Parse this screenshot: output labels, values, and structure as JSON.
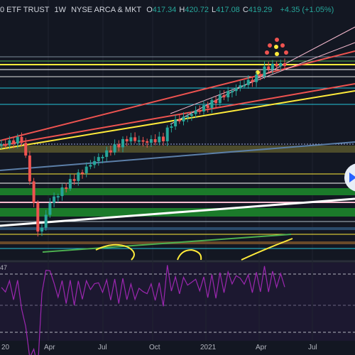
{
  "header": {
    "symbol": "0 ETF TRUST",
    "interval": "1W",
    "exchange": "NYSE ARCA & MKT",
    "ohlc": [
      {
        "label": "O",
        "value": "417.34"
      },
      {
        "label": "H",
        "value": "420.72"
      },
      {
        "label": "L",
        "value": "417.08"
      },
      {
        "label": "C",
        "value": "419.29"
      }
    ],
    "change": "+4.35 (+1.05%)"
  },
  "rsi": {
    "label": "47"
  },
  "time_axis": [
    "20",
    "Apr",
    "Jul",
    "Oct",
    "2021",
    "Apr",
    "Jul"
  ]
}
